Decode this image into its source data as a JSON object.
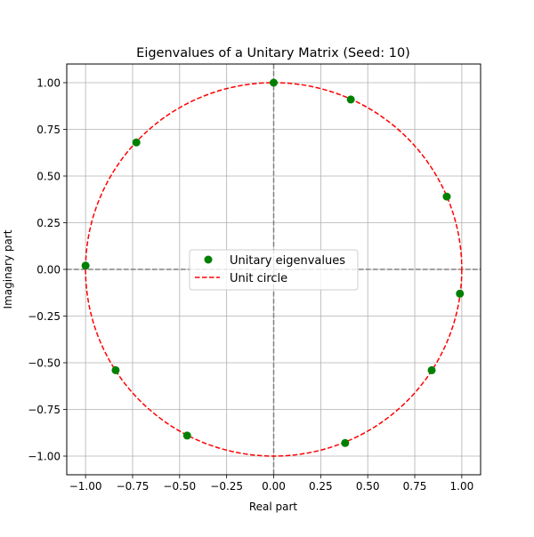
{
  "chart_data": {
    "type": "scatter",
    "title": "Eigenvalues of a Unitary Matrix (Seed: 10)",
    "xlabel": "Real part",
    "ylabel": "Imaginary part",
    "xlim": [
      -1.1,
      1.1
    ],
    "ylim": [
      -1.1,
      1.1
    ],
    "xticks": [
      -1.0,
      -0.75,
      -0.5,
      -0.25,
      0.0,
      0.25,
      0.5,
      0.75,
      1.0
    ],
    "yticks": [
      -1.0,
      -0.75,
      -0.5,
      -0.25,
      0.0,
      0.25,
      0.5,
      0.75,
      1.0
    ],
    "xtick_labels": [
      "−1.00",
      "−0.75",
      "−0.50",
      "−0.25",
      "0.00",
      "0.25",
      "0.50",
      "0.75",
      "1.00"
    ],
    "ytick_labels": [
      "−1.00",
      "−0.75",
      "−0.50",
      "−0.25",
      "0.00",
      "0.25",
      "0.50",
      "0.75",
      "1.00"
    ],
    "grid": true,
    "legend_position": "center",
    "series": [
      {
        "name": "Unitary eigenvalues",
        "kind": "scatter",
        "color": "#008000",
        "points": [
          {
            "x": 0.0,
            "y": 1.0
          },
          {
            "x": 0.41,
            "y": 0.91
          },
          {
            "x": -0.73,
            "y": 0.68
          },
          {
            "x": 0.92,
            "y": 0.39
          },
          {
            "x": -1.0,
            "y": 0.02
          },
          {
            "x": 0.99,
            "y": -0.13
          },
          {
            "x": -0.84,
            "y": -0.54
          },
          {
            "x": 0.84,
            "y": -0.54
          },
          {
            "x": -0.46,
            "y": -0.89
          },
          {
            "x": 0.38,
            "y": -0.93
          }
        ]
      },
      {
        "name": "Unit circle",
        "kind": "dashed-line",
        "color": "#ff0000"
      }
    ],
    "reference_lines": {
      "color": "#808080",
      "x": 0.0,
      "y": 0.0
    }
  }
}
